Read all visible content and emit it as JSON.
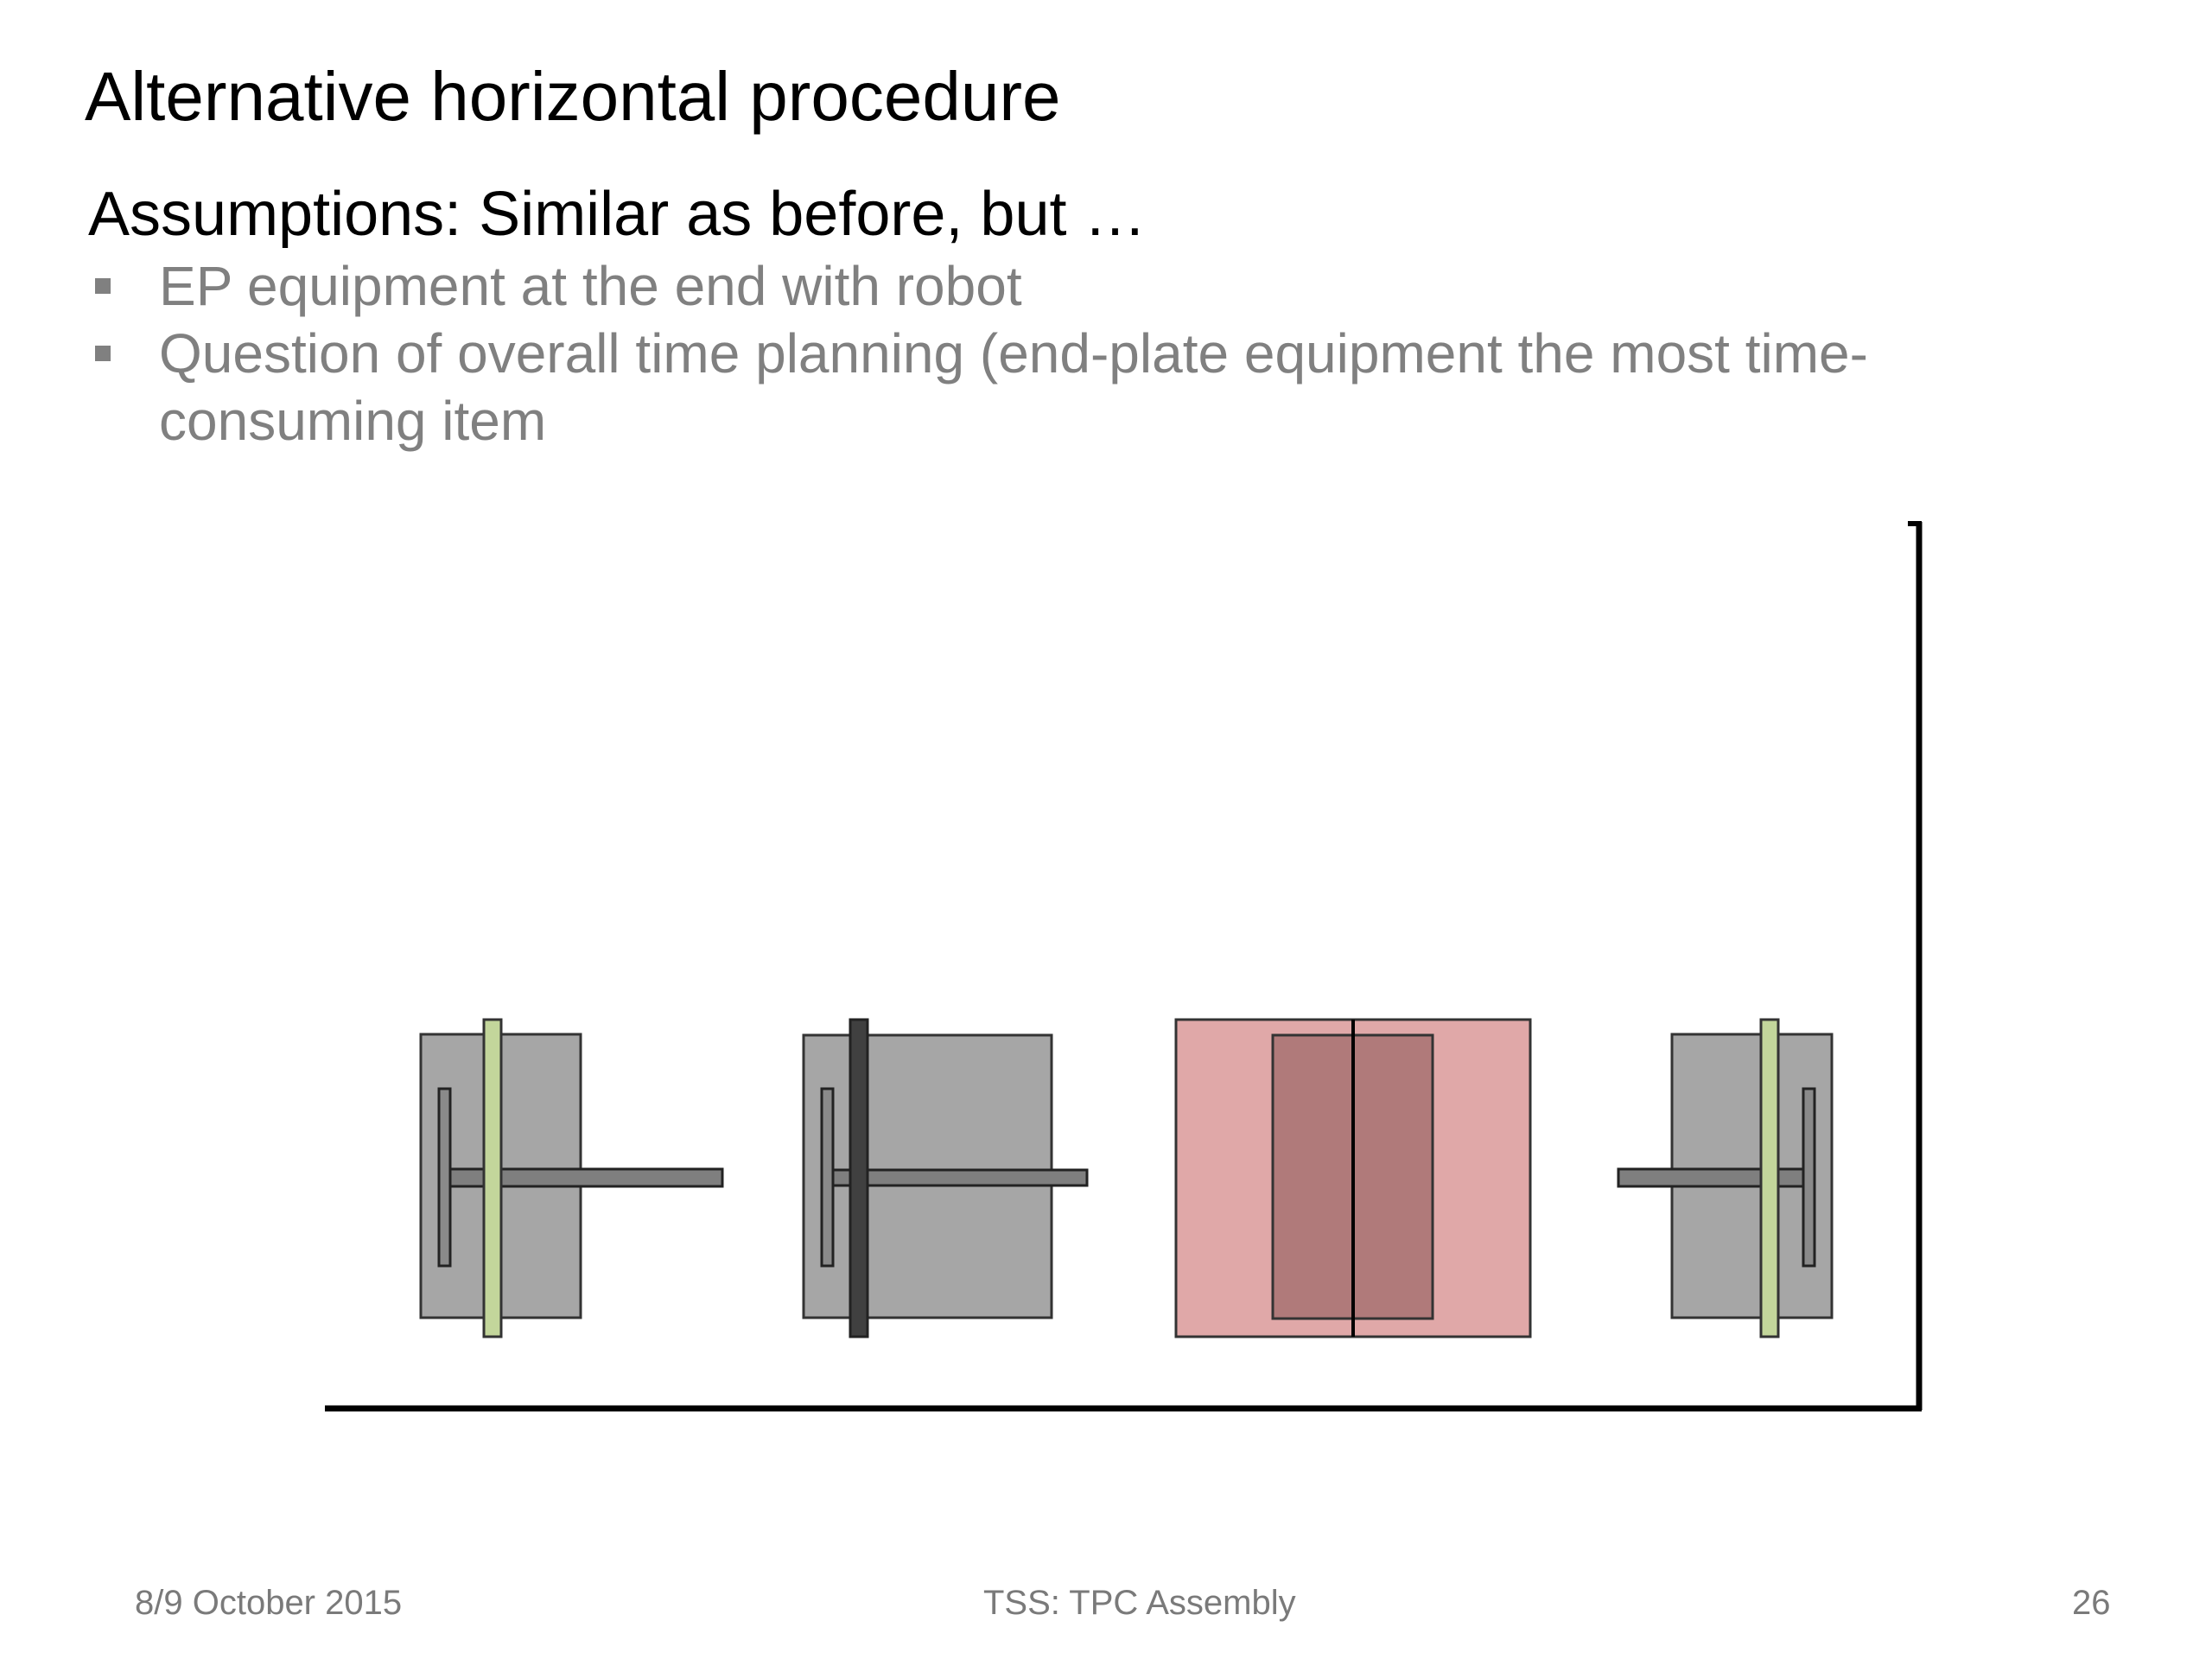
{
  "slide": {
    "title": "Alternative horizontal procedure",
    "subheading": "Assumptions: Similar as before, but …",
    "bullets": [
      "EP equipment at the end with robot",
      "Question of overall time planning (end-plate equipment the most time-consuming item"
    ]
  },
  "diagram": {
    "units": [
      {
        "name": "unit-1",
        "ring": "green"
      },
      {
        "name": "unit-2",
        "ring": "dark"
      },
      {
        "name": "unit-3",
        "ring": "none",
        "highlighted": true
      },
      {
        "name": "unit-4",
        "ring": "green"
      }
    ],
    "colors": {
      "frame": "#a6a6a6",
      "rod": "#7f7f7f",
      "green_ring": "#c3d69b",
      "dark_ring": "#404040",
      "highlight": "#e0a8a8",
      "highlight_inner": "#b07a7a"
    }
  },
  "footer": {
    "date": "8/9 October 2015",
    "center": "TSS: TPC Assembly",
    "page": "26"
  }
}
